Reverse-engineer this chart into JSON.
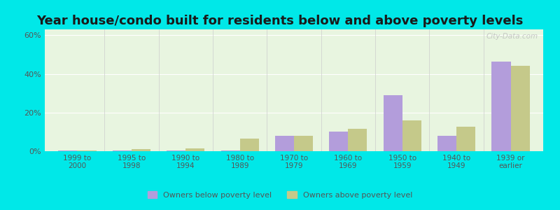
{
  "title": "Year house/condo built for residents below and above poverty levels",
  "categories": [
    "1999 to\n2000",
    "1995 to\n1998",
    "1990 to\n1994",
    "1980 to\n1989",
    "1970 to\n1979",
    "1960 to\n1969",
    "1950 to\n1959",
    "1940 to\n1949",
    "1939 or\nearlier"
  ],
  "below_poverty": [
    0.5,
    0.5,
    0.5,
    0.5,
    8.0,
    10.0,
    29.0,
    8.0,
    46.5
  ],
  "above_poverty": [
    0.5,
    1.0,
    1.5,
    6.5,
    8.0,
    11.5,
    16.0,
    12.5,
    44.0
  ],
  "below_color": "#b39ddb",
  "above_color": "#c5c98a",
  "ylim": [
    0,
    63
  ],
  "yticks": [
    0,
    20,
    40,
    60
  ],
  "ytick_labels": [
    "0%",
    "20%",
    "40%",
    "60%"
  ],
  "outer_bg": "#00e8e8",
  "plot_bg": "#e8f5e0",
  "title_fontsize": 13,
  "legend_below_label": "Owners below poverty level",
  "legend_above_label": "Owners above poverty level",
  "watermark": "City-Data.com"
}
